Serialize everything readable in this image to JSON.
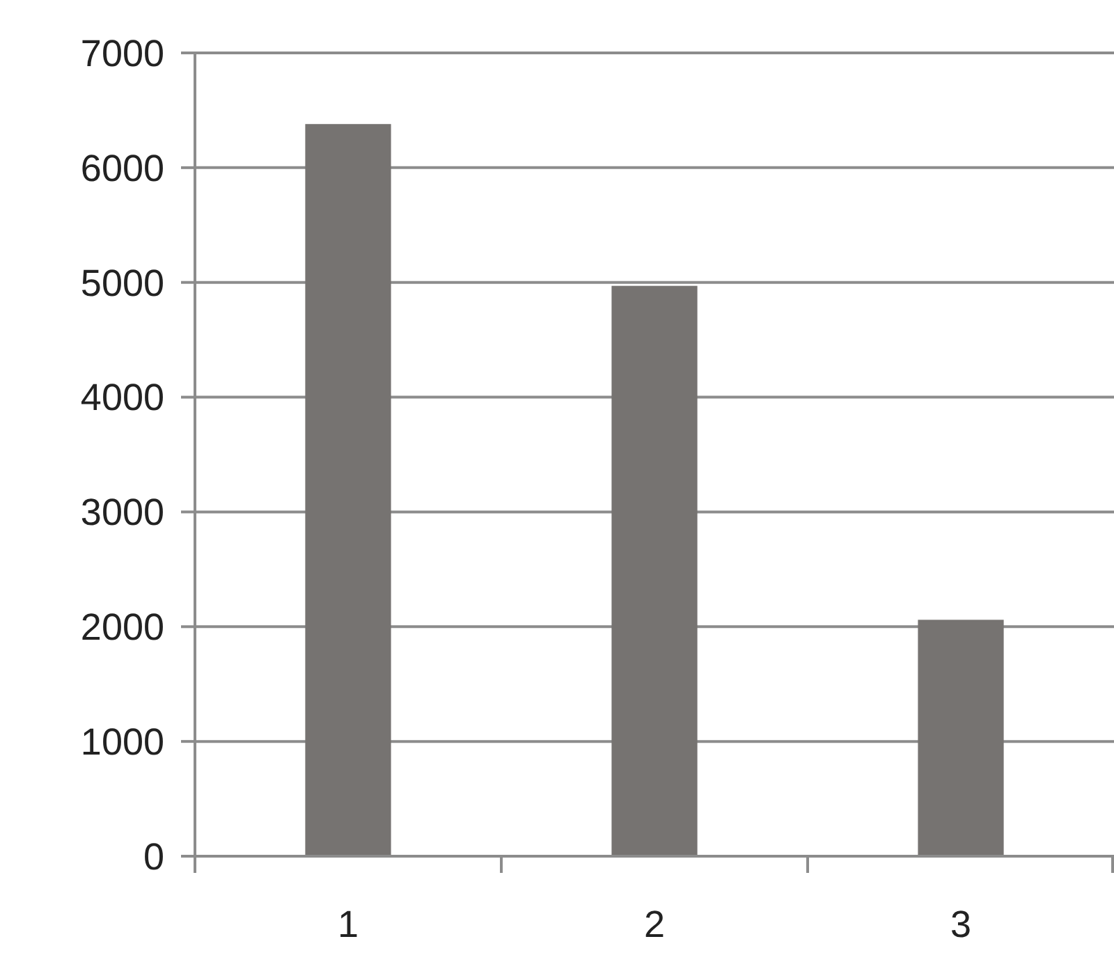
{
  "chart_data": {
    "type": "bar",
    "categories": [
      "1",
      "2",
      "3"
    ],
    "values": [
      6380,
      4970,
      2060
    ],
    "color": "#767371",
    "ylim": [
      0,
      7000
    ],
    "yticks": [
      0,
      1000,
      2000,
      3000,
      4000,
      5000,
      6000,
      7000
    ],
    "grid": "y"
  }
}
